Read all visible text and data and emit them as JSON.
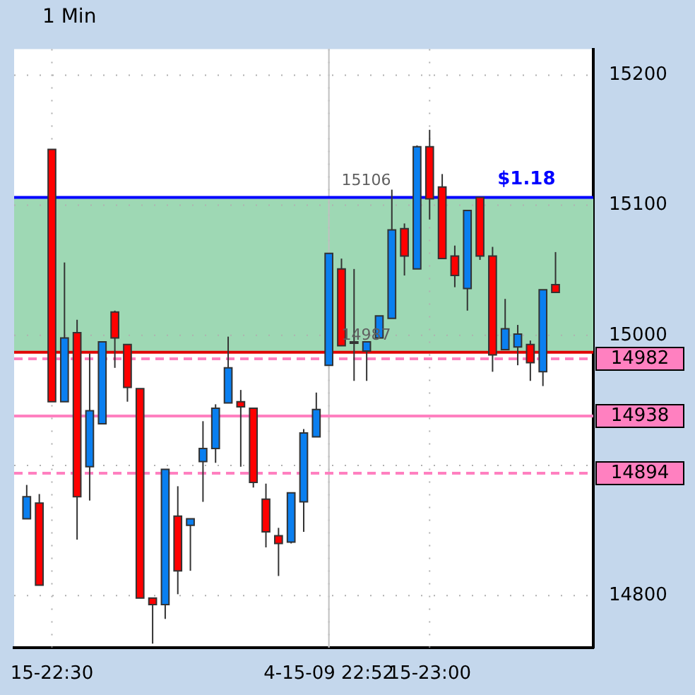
{
  "chart_data": {
    "type": "candlestick",
    "title": "1 Min",
    "x": [
      "--04-15T22:28",
      "--04-15T22:29",
      "--04-15T22:30",
      "--04-15T22:31",
      "--04-15T22:32",
      "--04-15T22:33",
      "--04-15T22:34",
      "--04-15T22:35",
      "--04-15T22:36",
      "--04-15T22:37",
      "--04-15T22:38",
      "--04-15T22:39",
      "--04-15T22:40",
      "--04-15T22:41",
      "--04-15T22:42",
      "--04-15T22:43",
      "--04-15T22:44",
      "--04-15T22:45",
      "--04-15T22:46",
      "--04-15T22:47",
      "--04-15T22:48",
      "--04-15T22:49",
      "--04-15T22:50",
      "--04-15T22:51",
      "--04-15T22:52",
      "--04-15T22:53",
      "--04-15T22:54",
      "--04-15T22:55",
      "--04-15T22:56",
      "--04-15T22:57",
      "--04-15T22:58",
      "--04-15T22:59",
      "--04-15T23:00",
      "--04-15T23:01",
      "--04-15T23:02",
      "--04-15T23:03",
      "--04-15T23:04",
      "--04-15T23:05",
      "--04-15T23:06",
      "--04-15T23:07",
      "--04-15T23:08",
      "--04-15T23:09",
      "--04-15T23:10"
    ],
    "ohlc": [
      [
        14859,
        14885,
        14859,
        14876
      ],
      [
        14871,
        14878,
        14808,
        14808
      ],
      [
        15143,
        15143,
        14949,
        14949
      ],
      [
        14949,
        15056,
        14949,
        14998
      ],
      [
        15002,
        15012,
        14843,
        14876
      ],
      [
        14899,
        14986,
        14873,
        14942
      ],
      [
        14932,
        14995,
        14932,
        14995
      ],
      [
        15018,
        15019,
        14975,
        14998
      ],
      [
        14993,
        14993,
        14949,
        14960
      ],
      [
        14959,
        14959,
        14798,
        14798
      ],
      [
        14798,
        14798,
        14763,
        14793
      ],
      [
        14793,
        14897,
        14782,
        14897
      ],
      [
        14861,
        14884,
        14801,
        14819
      ],
      [
        14854,
        14859,
        14819,
        14859
      ],
      [
        14903,
        14934,
        14872,
        14913
      ],
      [
        14913,
        14947,
        14902,
        14944
      ],
      [
        14948,
        14999,
        14948,
        14975
      ],
      [
        14949,
        14958,
        14899,
        14945
      ],
      [
        14944,
        14944,
        14883,
        14887
      ],
      [
        14874,
        14886,
        14837,
        14849
      ],
      [
        14846,
        14852,
        14815,
        14840
      ],
      [
        14841,
        14879,
        14840,
        14879
      ],
      [
        14872,
        14928,
        14849,
        14925
      ],
      [
        14922,
        14956,
        14922,
        14943
      ],
      [
        14977,
        15063,
        14977,
        15063
      ],
      [
        15051,
        15059,
        14992,
        14992
      ],
      [
        14995,
        15051,
        14965,
        14994
      ],
      [
        14988,
        14995,
        14965,
        14995
      ],
      [
        14998,
        15015,
        14998,
        15015
      ],
      [
        15013,
        15112,
        15013,
        15081
      ],
      [
        15082,
        15086,
        15046,
        15061
      ],
      [
        15051,
        15146,
        15051,
        15145
      ],
      [
        15145,
        15158,
        15089,
        15105
      ],
      [
        15114,
        15124,
        15059,
        15059
      ],
      [
        15061,
        15069,
        15037,
        15046
      ],
      [
        15036,
        15096,
        15019,
        15096
      ],
      [
        15106,
        15106,
        15058,
        15061
      ],
      [
        15061,
        15068,
        14972,
        14985
      ],
      [
        14989,
        15028,
        14989,
        15005
      ],
      [
        14991,
        15008,
        14977,
        15001
      ],
      [
        14993,
        14996,
        14965,
        14979
      ],
      [
        14972,
        15035,
        14961,
        15035
      ],
      [
        15039,
        15064,
        15033,
        15033
      ]
    ],
    "colors": [
      "#0a7ff0",
      "#ff0000",
      "#ff0000",
      "#0a7ff0",
      "#ff0000",
      "#0a7ff0",
      "#0a7ff0",
      "#ff0000",
      "#ff0000",
      "#ff0000",
      "#ff0000",
      "#0a7ff0",
      "#ff0000",
      "#0a7ff0",
      "#0a7ff0",
      "#0a7ff0",
      "#0a7ff0",
      "#ff0000",
      "#ff0000",
      "#ff0000",
      "#ff0000",
      "#0a7ff0",
      "#0a7ff0",
      "#0a7ff0",
      "#0a7ff0",
      "#ff0000",
      "#ff0000",
      "#0a7ff0",
      "#0a7ff0",
      "#0a7ff0",
      "#ff0000",
      "#0a7ff0",
      "#ff0000",
      "#ff0000",
      "#ff0000",
      "#0a7ff0",
      "#ff0000",
      "#ff0000",
      "#0a7ff0",
      "#0a7ff0",
      "#ff0000",
      "#0a7ff0",
      "#ff0000"
    ],
    "xlim": [
      "--04-15T22:27",
      "--04-15T23:13"
    ],
    "xticks": [
      {
        "value": "--04-15T22:30",
        "label": "15-22:30"
      },
      {
        "value": "--04-15T22:52",
        "label": "4-15-09 22:52"
      },
      {
        "value": "--04-15T23:00",
        "label": "15-23:00"
      }
    ],
    "ylim": [
      14760,
      15220
    ],
    "yticks": [
      14800,
      {
        "value": 14900,
        "label": null
      },
      15000,
      15100,
      15200
    ],
    "grid": true,
    "bands": [
      {
        "axis": "y",
        "from": 14987,
        "to": 15106,
        "color": "#9ed8b4"
      }
    ],
    "ref_lines": [
      {
        "axis": "x",
        "value": "--04-15T22:52",
        "color": "#c0c0c0"
      },
      {
        "axis": "y",
        "value": 14982,
        "label": "14982",
        "color": "#ff80c0",
        "line_style": "dashed"
      },
      {
        "axis": "y",
        "value": 14938,
        "label": "14938",
        "color": "#ff80c0",
        "line_style": "solid"
      },
      {
        "axis": "y",
        "value": 14894,
        "label": "14894",
        "color": "#ff80c0",
        "line_style": "dashed"
      },
      {
        "axis": "y",
        "value": 15106,
        "color": "#0000ff",
        "line_style": "solid"
      },
      {
        "axis": "y",
        "value": 14987,
        "color": "#e00000",
        "line_style": "solid"
      }
    ],
    "annotations": [
      {
        "text": "$1.18",
        "x": "--04-15T23:10",
        "y": 15106
      },
      {
        "text": "15106",
        "x": "--04-15T22:53",
        "y": 15106
      },
      {
        "text": "14987",
        "x": "--04-15T22:53",
        "y": 14987
      }
    ]
  }
}
